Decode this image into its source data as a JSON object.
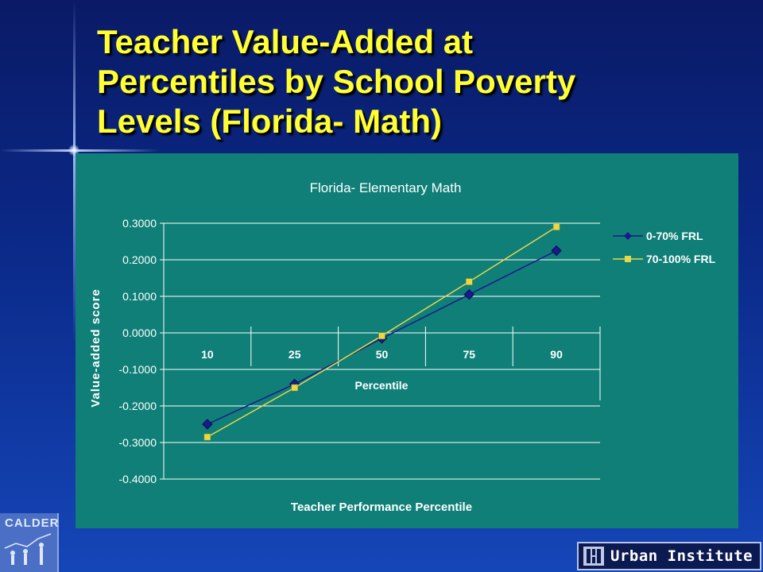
{
  "slide": {
    "title": "Teacher Value-Added at\nPercentiles by School Poverty\nLevels (Florida- Math)"
  },
  "logos": {
    "calder": "CALDER",
    "urban": "Urban Institute"
  },
  "colors": {
    "title": "#ffff33",
    "chart_bg": "#0f7f78",
    "plot_bg": "#0f7f78",
    "series_low": "#1a1a8c",
    "series_high": "#e6d84a"
  },
  "chart_data": {
    "type": "line",
    "title": "Florida- Elementary Math",
    "xlabel": "Teacher Performance Percentile",
    "ylabel": "Value-added score",
    "category_axis_title": "Percentile",
    "categories": [
      "10",
      "25",
      "50",
      "75",
      "90"
    ],
    "ylim": [
      -0.4,
      0.3
    ],
    "yticks": [
      "0.3000",
      "0.2000",
      "0.1000",
      "0.0000",
      "-0.1000",
      "-0.2000",
      "-0.3000",
      "-0.4000"
    ],
    "grid": true,
    "legend_position": "right",
    "series": [
      {
        "name": "0-70% FRL",
        "marker": "diamond",
        "color": "#1a1a8c",
        "values": [
          -0.25,
          -0.14,
          -0.015,
          0.105,
          0.225
        ]
      },
      {
        "name": "70-100% FRL",
        "marker": "square",
        "color": "#e6d84a",
        "values": [
          -0.285,
          -0.15,
          -0.008,
          0.14,
          0.29
        ]
      }
    ]
  }
}
